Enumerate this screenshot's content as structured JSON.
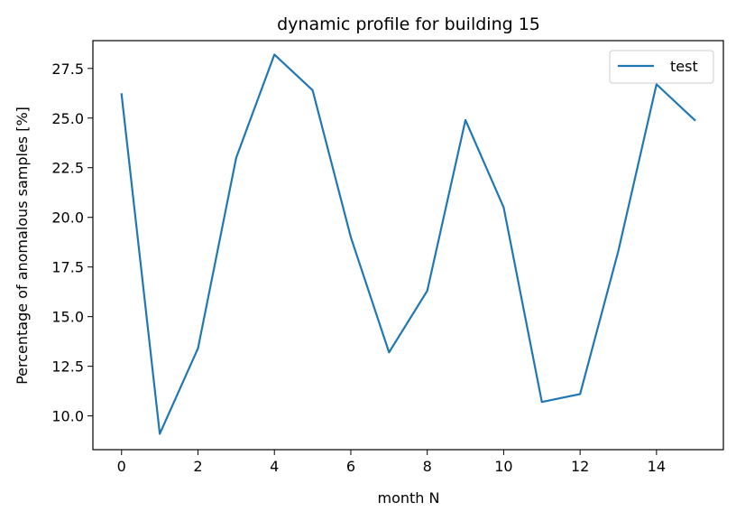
{
  "chart_data": {
    "type": "line",
    "title": "dynamic profile for building 15",
    "xlabel": "month N",
    "ylabel": "Percentage of anomalous samples [%]",
    "xlim": [
      -0.75,
      15.75
    ],
    "ylim": [
      8.3,
      28.9
    ],
    "xticks": [
      0,
      2,
      4,
      6,
      8,
      10,
      12,
      14
    ],
    "yticks": [
      10.0,
      12.5,
      15.0,
      17.5,
      20.0,
      22.5,
      25.0,
      27.5
    ],
    "ytick_labels": [
      "10.0",
      "12.5",
      "15.0",
      "17.5",
      "20.0",
      "22.5",
      "25.0",
      "27.5"
    ],
    "legend_position": "top-right",
    "grid": false,
    "series": [
      {
        "name": "test",
        "color": "#1f77b4",
        "x": [
          0,
          1,
          2,
          3,
          4,
          5,
          6,
          7,
          8,
          9,
          10,
          11,
          12,
          13,
          14,
          15
        ],
        "y": [
          26.2,
          9.1,
          13.4,
          23.0,
          28.2,
          26.4,
          19.0,
          13.2,
          16.3,
          24.9,
          20.5,
          10.7,
          11.1,
          18.3,
          26.7,
          24.9
        ]
      }
    ]
  }
}
